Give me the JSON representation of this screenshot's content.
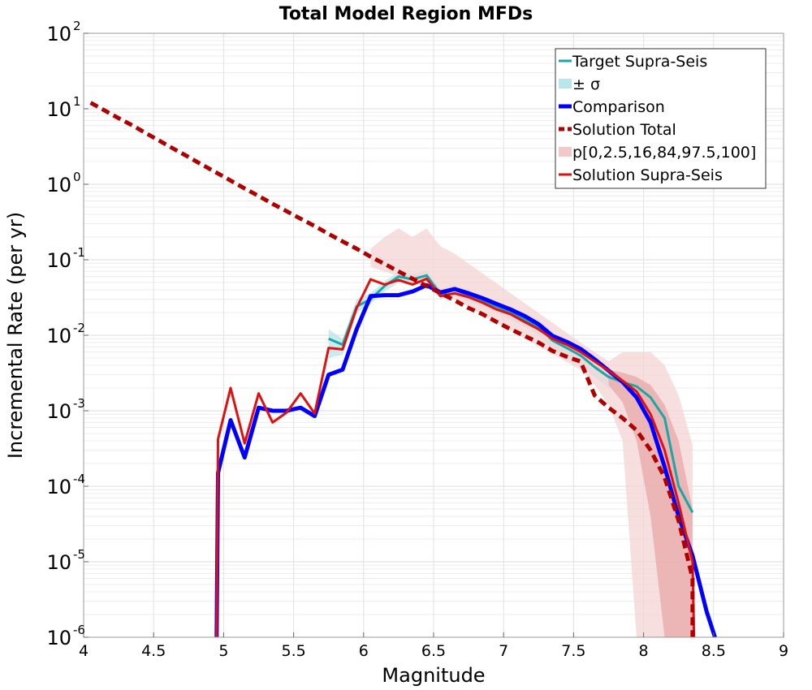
{
  "chart_data": {
    "type": "line",
    "title": "Total Model Region MFDs",
    "xlabel": "Magnitude",
    "ylabel": "Incremental Rate (per yr)",
    "xlim": [
      4,
      9
    ],
    "ylim": [
      1e-06,
      100
    ],
    "yscale": "log",
    "grid": true,
    "legend_position": "top-right",
    "x_ticks": [
      "4",
      "4.5",
      "5",
      "5.5",
      "6",
      "6.5",
      "7",
      "7.5",
      "8",
      "8.5",
      "9"
    ],
    "y_ticks": [
      {
        "base": "10",
        "exp": "2",
        "value": 100
      },
      {
        "base": "10",
        "exp": "1",
        "value": 10
      },
      {
        "base": "10",
        "exp": "0",
        "value": 1
      },
      {
        "base": "10",
        "exp": "-1",
        "value": 0.1
      },
      {
        "base": "10",
        "exp": "-2",
        "value": 0.01
      },
      {
        "base": "10",
        "exp": "-3",
        "value": 0.001
      },
      {
        "base": "10",
        "exp": "-4",
        "value": 0.0001
      },
      {
        "base": "10",
        "exp": "-5",
        "value": 1e-05
      },
      {
        "base": "10",
        "exp": "-6",
        "value": 1e-06
      }
    ],
    "legend": [
      {
        "label": "Target Supra-Seis",
        "color": "#1aa6a6",
        "style": "line"
      },
      {
        "label": "± σ",
        "color": "#b8e6ea",
        "style": "band"
      },
      {
        "label": "Comparison",
        "color": "#0000ff",
        "style": "thick"
      },
      {
        "label": "Solution Total",
        "color": "#b00000",
        "style": "dashed"
      },
      {
        "label": "p[0,2.5,16,84,97.5,100]",
        "color": "#f2c8c8",
        "style": "band"
      },
      {
        "label": "Solution Supra-Seis",
        "color": "#e01010",
        "style": "line"
      }
    ],
    "series": [
      {
        "name": "Solution Total",
        "color": "#b00000",
        "style": "dashed",
        "points": [
          [
            4.05,
            12
          ],
          [
            4.15,
            9.5
          ],
          [
            4.25,
            7.5
          ],
          [
            4.35,
            6
          ],
          [
            4.45,
            4.7
          ],
          [
            4.55,
            3.7
          ],
          [
            4.65,
            2.9
          ],
          [
            4.75,
            2.3
          ],
          [
            4.85,
            1.8
          ],
          [
            4.95,
            1.42
          ],
          [
            5.05,
            1.12
          ],
          [
            5.15,
            0.88
          ],
          [
            5.25,
            0.7
          ],
          [
            5.35,
            0.55
          ],
          [
            5.45,
            0.44
          ],
          [
            5.55,
            0.35
          ],
          [
            5.65,
            0.28
          ],
          [
            5.75,
            0.22
          ],
          [
            5.85,
            0.175
          ],
          [
            5.95,
            0.14
          ],
          [
            6.05,
            0.11
          ],
          [
            6.15,
            0.088
          ],
          [
            6.25,
            0.07
          ],
          [
            6.35,
            0.056
          ],
          [
            6.45,
            0.045
          ],
          [
            6.55,
            0.036
          ],
          [
            6.65,
            0.029
          ],
          [
            6.75,
            0.023
          ],
          [
            6.85,
            0.019
          ],
          [
            6.95,
            0.015
          ],
          [
            7.05,
            0.012
          ],
          [
            7.15,
            0.0098
          ],
          [
            7.25,
            0.008
          ],
          [
            7.35,
            0.0062
          ],
          [
            7.45,
            0.0052
          ],
          [
            7.55,
            0.0045
          ],
          [
            7.65,
            0.0016
          ],
          [
            7.75,
            0.0011
          ],
          [
            7.85,
            0.0008
          ],
          [
            7.95,
            0.00055
          ],
          [
            8.05,
            0.0003
          ],
          [
            8.15,
            0.00013
          ],
          [
            8.25,
            3.5e-05
          ],
          [
            8.35,
            6e-06
          ],
          [
            8.35,
            1e-06
          ]
        ]
      },
      {
        "name": "Target Supra-Seis",
        "color": "#1aa6a6",
        "style": "line",
        "points": [
          [
            5.75,
            0.009
          ],
          [
            5.85,
            0.0075
          ],
          [
            5.95,
            0.024
          ],
          [
            6.05,
            0.03
          ],
          [
            6.15,
            0.045
          ],
          [
            6.25,
            0.06
          ],
          [
            6.35,
            0.055
          ],
          [
            6.45,
            0.062
          ],
          [
            6.55,
            0.035
          ],
          [
            6.65,
            0.04
          ],
          [
            6.75,
            0.034
          ],
          [
            6.85,
            0.029
          ],
          [
            6.95,
            0.024
          ],
          [
            7.05,
            0.02
          ],
          [
            7.15,
            0.016
          ],
          [
            7.25,
            0.013
          ],
          [
            7.35,
            0.0085
          ],
          [
            7.45,
            0.0068
          ],
          [
            7.55,
            0.0054
          ],
          [
            7.65,
            0.0038
          ],
          [
            7.75,
            0.0028
          ],
          [
            7.85,
            0.0024
          ],
          [
            7.95,
            0.0021
          ],
          [
            8.05,
            0.0015
          ],
          [
            8.15,
            0.0008
          ],
          [
            8.25,
            0.0001
          ],
          [
            8.35,
            4.5e-05
          ]
        ]
      },
      {
        "name": "Comparison",
        "color": "#0000ff",
        "style": "thick",
        "points": [
          [
            4.95,
            1e-06
          ],
          [
            4.96,
            0.00015
          ],
          [
            5.05,
            0.00075
          ],
          [
            5.15,
            0.00024
          ],
          [
            5.25,
            0.0011
          ],
          [
            5.35,
            0.001
          ],
          [
            5.45,
            0.001
          ],
          [
            5.55,
            0.0011
          ],
          [
            5.65,
            0.00085
          ],
          [
            5.75,
            0.003
          ],
          [
            5.85,
            0.0035
          ],
          [
            5.95,
            0.012
          ],
          [
            6.05,
            0.033
          ],
          [
            6.15,
            0.034
          ],
          [
            6.25,
            0.034
          ],
          [
            6.35,
            0.038
          ],
          [
            6.45,
            0.046
          ],
          [
            6.55,
            0.037
          ],
          [
            6.65,
            0.041
          ],
          [
            6.75,
            0.036
          ],
          [
            6.85,
            0.031
          ],
          [
            6.95,
            0.026
          ],
          [
            7.05,
            0.022
          ],
          [
            7.15,
            0.018
          ],
          [
            7.25,
            0.014
          ],
          [
            7.35,
            0.0098
          ],
          [
            7.45,
            0.0082
          ],
          [
            7.55,
            0.0066
          ],
          [
            7.65,
            0.0048
          ],
          [
            7.75,
            0.0034
          ],
          [
            7.85,
            0.0024
          ],
          [
            7.95,
            0.0015
          ],
          [
            8.05,
            0.0007
          ],
          [
            8.15,
            0.00018
          ],
          [
            8.25,
            4e-05
          ],
          [
            8.35,
            1.2e-05
          ],
          [
            8.45,
            2.2e-06
          ],
          [
            8.51,
            1e-06
          ]
        ]
      },
      {
        "name": "Solution Supra-Seis",
        "color": "#e01010",
        "style": "line",
        "points": [
          [
            4.95,
            1e-06
          ],
          [
            4.96,
            0.00042
          ],
          [
            5.05,
            0.002
          ],
          [
            5.15,
            0.00037
          ],
          [
            5.25,
            0.0017
          ],
          [
            5.35,
            0.0007
          ],
          [
            5.45,
            0.00095
          ],
          [
            5.55,
            0.0017
          ],
          [
            5.65,
            0.00092
          ],
          [
            5.75,
            0.0068
          ],
          [
            5.85,
            0.0065
          ],
          [
            5.95,
            0.023
          ],
          [
            6.05,
            0.055
          ],
          [
            6.15,
            0.047
          ],
          [
            6.25,
            0.054
          ],
          [
            6.35,
            0.047
          ],
          [
            6.45,
            0.056
          ],
          [
            6.55,
            0.033
          ],
          [
            6.65,
            0.036
          ],
          [
            6.75,
            0.032
          ],
          [
            6.85,
            0.027
          ],
          [
            6.95,
            0.022
          ],
          [
            7.05,
            0.019
          ],
          [
            7.15,
            0.015
          ],
          [
            7.25,
            0.012
          ],
          [
            7.35,
            0.009
          ],
          [
            7.45,
            0.0075
          ],
          [
            7.55,
            0.006
          ],
          [
            7.65,
            0.0045
          ],
          [
            7.75,
            0.0034
          ],
          [
            7.85,
            0.0025
          ],
          [
            7.95,
            0.0018
          ],
          [
            8.05,
            0.0009
          ],
          [
            8.15,
            0.0003
          ],
          [
            8.25,
            6e-05
          ],
          [
            8.35,
            1e-05
          ],
          [
            8.36,
            1e-06
          ]
        ]
      }
    ],
    "bands": [
      {
        "name": "± σ",
        "color": "#b8e6ea",
        "points": [
          [
            5.75,
            0.012,
            0.005
          ],
          [
            5.85,
            0.009,
            0.0055
          ],
          [
            5.95,
            0.03,
            0.02
          ],
          [
            6.05,
            0.036,
            0.026
          ],
          [
            6.15,
            0.052,
            0.038
          ],
          [
            6.25,
            0.07,
            0.05
          ],
          [
            6.35,
            0.064,
            0.046
          ],
          [
            6.45,
            0.072,
            0.052
          ],
          [
            6.55,
            0.041,
            0.03
          ],
          [
            6.65,
            0.046,
            0.034
          ],
          [
            6.75,
            0.039,
            0.028
          ],
          [
            6.85,
            0.033,
            0.024
          ],
          [
            6.95,
            0.028,
            0.02
          ],
          [
            7.05,
            0.024,
            0.016
          ],
          [
            7.15,
            0.019,
            0.013
          ],
          [
            7.25,
            0.016,
            0.01
          ],
          [
            7.35,
            0.011,
            0.0065
          ],
          [
            7.45,
            0.0085,
            0.005
          ],
          [
            7.55,
            0.0068,
            0.004
          ],
          [
            7.65,
            0.0048,
            0.0028
          ],
          [
            7.75,
            0.0035,
            0.002
          ],
          [
            7.85,
            0.003,
            0.0017
          ],
          [
            7.95,
            0.0027,
            0.0015
          ],
          [
            8.05,
            0.002,
            0.001
          ],
          [
            8.15,
            0.0011,
            0.0005
          ],
          [
            8.25,
            0.00014,
            7e-05
          ],
          [
            8.35,
            6e-05,
            3e-05
          ]
        ]
      },
      {
        "name": "p[0,2.5,16,84,97.5,100] outer",
        "color": "#f4d4d4",
        "points": [
          [
            6.05,
            0.14,
            0.08
          ],
          [
            6.15,
            0.2,
            0.07
          ],
          [
            6.25,
            0.26,
            0.06
          ],
          [
            6.35,
            0.2,
            0.05
          ],
          [
            6.45,
            0.26,
            0.045
          ],
          [
            6.55,
            0.15,
            0.035
          ],
          [
            6.65,
            0.12,
            0.03
          ],
          [
            7.55,
            0.008,
            0.0035
          ],
          [
            7.65,
            0.006,
            0.0022
          ],
          [
            7.75,
            0.0045,
            0.0012
          ],
          [
            7.85,
            0.006,
            0.0004
          ],
          [
            7.95,
            0.006,
            1e-06
          ],
          [
            8.05,
            0.006,
            1e-06
          ],
          [
            8.15,
            0.004,
            1e-06
          ],
          [
            8.25,
            0.0016,
            1e-06
          ],
          [
            8.35,
            0.00035,
            1e-06
          ]
        ]
      },
      {
        "name": "p[0,2.5,16,84,97.5,100] inner",
        "color": "#e8a8a8",
        "points": [
          [
            7.75,
            0.0035,
            0.0022
          ],
          [
            7.85,
            0.0032,
            0.0013
          ],
          [
            7.95,
            0.0028,
            0.0004
          ],
          [
            8.05,
            0.0022,
            4e-05
          ],
          [
            8.15,
            0.0012,
            1e-06
          ],
          [
            8.25,
            0.0004,
            1e-06
          ],
          [
            8.35,
            5e-05,
            1e-06
          ]
        ]
      }
    ]
  }
}
